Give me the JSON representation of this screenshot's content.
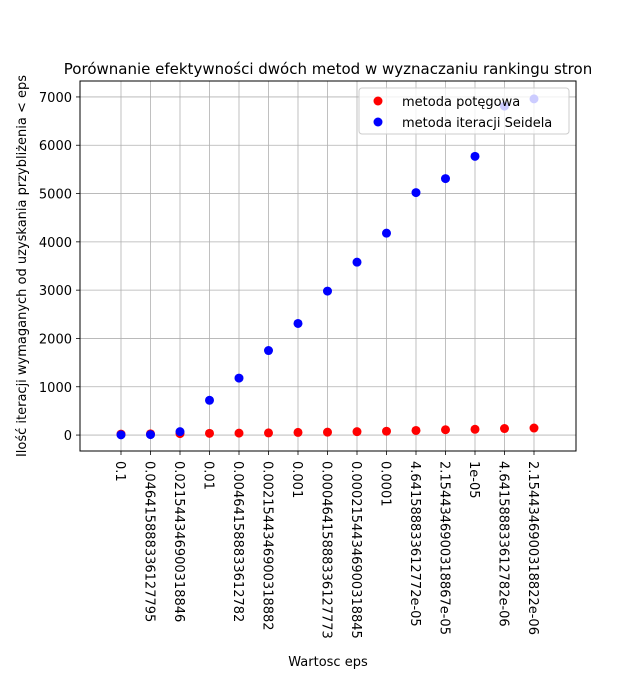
{
  "chart_data": {
    "type": "scatter",
    "title": "Porównanie efektywności dwóch metod w wyznaczaniu rankingu stron",
    "xlabel": "Wartosc eps",
    "ylabel": "Ilość iteracji wymaganych od uzyskania przybliżenia < eps",
    "categories": [
      "0.1",
      "0.046415888336127795",
      "0.021544346900318846",
      "0.01",
      "0.004641588833612782",
      "0.0021544346900318882",
      "0.001",
      "0.00046415888336127773",
      "0.00021544346900318845",
      "0.0001",
      "4.641588833612772e-05",
      "2.1544346900318867e-05",
      "1e-05",
      "4.641588833612782e-06",
      "2.1544346900318822e-06"
    ],
    "ylim": [
      -330,
      7330
    ],
    "yticks": [
      0,
      1000,
      2000,
      3000,
      4000,
      5000,
      6000,
      7000
    ],
    "grid": true,
    "legend_position": "top-right",
    "series": [
      {
        "name": "metoda potęgowa",
        "color": "#ff0000",
        "values": [
          20,
          25,
          30,
          35,
          40,
          45,
          55,
          60,
          70,
          80,
          95,
          110,
          120,
          135,
          145
        ]
      },
      {
        "name": "metoda iteracji Seidela",
        "color": "#0000ff",
        "values": [
          5,
          10,
          70,
          720,
          1180,
          1750,
          2310,
          2980,
          3580,
          4180,
          5020,
          5310,
          5770,
          6810,
          6960
        ]
      }
    ]
  }
}
